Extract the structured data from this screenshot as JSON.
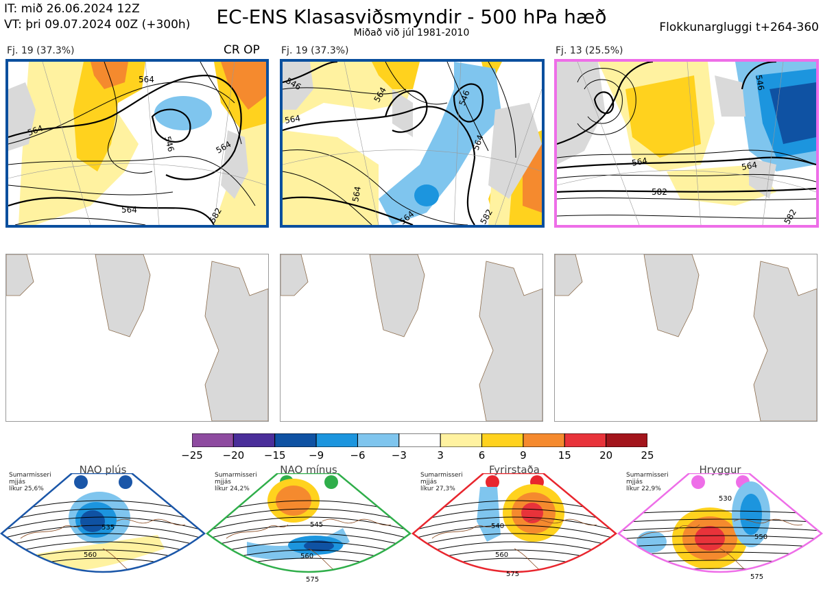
{
  "header": {
    "issue_time": "IT: mið 26.06.2024 12Z",
    "valid_time": "VT: þri 09.07.2024 00Z  (+300h)",
    "title": "EC-ENS Klasasviðsmyndir - 500 hPa hæð",
    "subtitle": "Miðað við júl 1981-2010",
    "window": "Flokkunargluggi t+264-360"
  },
  "clusters": [
    {
      "label": "Fj. 19 (37.3%)",
      "tag": "CR OP",
      "border": "#0a4f9e",
      "contours": [
        "564",
        "546",
        "564",
        "564",
        "564",
        "582"
      ]
    },
    {
      "label": "Fj. 19 (37.3%)",
      "tag": "",
      "border": "#0a4f9e",
      "contours": [
        "546",
        "546",
        "564",
        "564",
        "564",
        "582",
        "564",
        "564"
      ]
    },
    {
      "label": "Fj. 13 (25.5%)",
      "tag": "",
      "border": "#ee6ee8",
      "contours": [
        "546",
        "564",
        "564",
        "582",
        "582"
      ]
    }
  ],
  "colorbar": {
    "colors": [
      "#8e4ba0",
      "#4a2e9a",
      "#0f52a3",
      "#1c95de",
      "#7fc5ee",
      "#ffffff",
      "#fff2a0",
      "#ffd21e",
      "#f58a2e",
      "#e8333a",
      "#a3151c"
    ],
    "ticks": [
      "−25",
      "−20",
      "−15",
      "−9",
      "−6",
      "−3",
      "3",
      "6",
      "9",
      "15",
      "20",
      "25"
    ]
  },
  "regimes": [
    {
      "name": "NAO plús",
      "note": [
        "Sumarmisseri",
        "mjjás",
        "líkur 25,6%"
      ],
      "color": "#1a56a8",
      "contours": [
        "535",
        "560"
      ]
    },
    {
      "name": "NAO mínus",
      "note": [
        "Sumarmisseri",
        "mjjás",
        "líkur 24,2%"
      ],
      "color": "#2fae4a",
      "contours": [
        "545",
        "560",
        "575"
      ]
    },
    {
      "name": "Fyrirstaða",
      "note": [
        "Sumarmisseri",
        "mjjás",
        "líkur 27,3%"
      ],
      "color": "#e8262e",
      "contours": [
        "540",
        "560",
        "575"
      ]
    },
    {
      "name": "Hryggur",
      "note": [
        "Sumarmisseri",
        "mjjás",
        "líkur 22,9%"
      ],
      "color": "#ee6ee8",
      "contours": [
        "530",
        "550",
        "575"
      ]
    }
  ]
}
